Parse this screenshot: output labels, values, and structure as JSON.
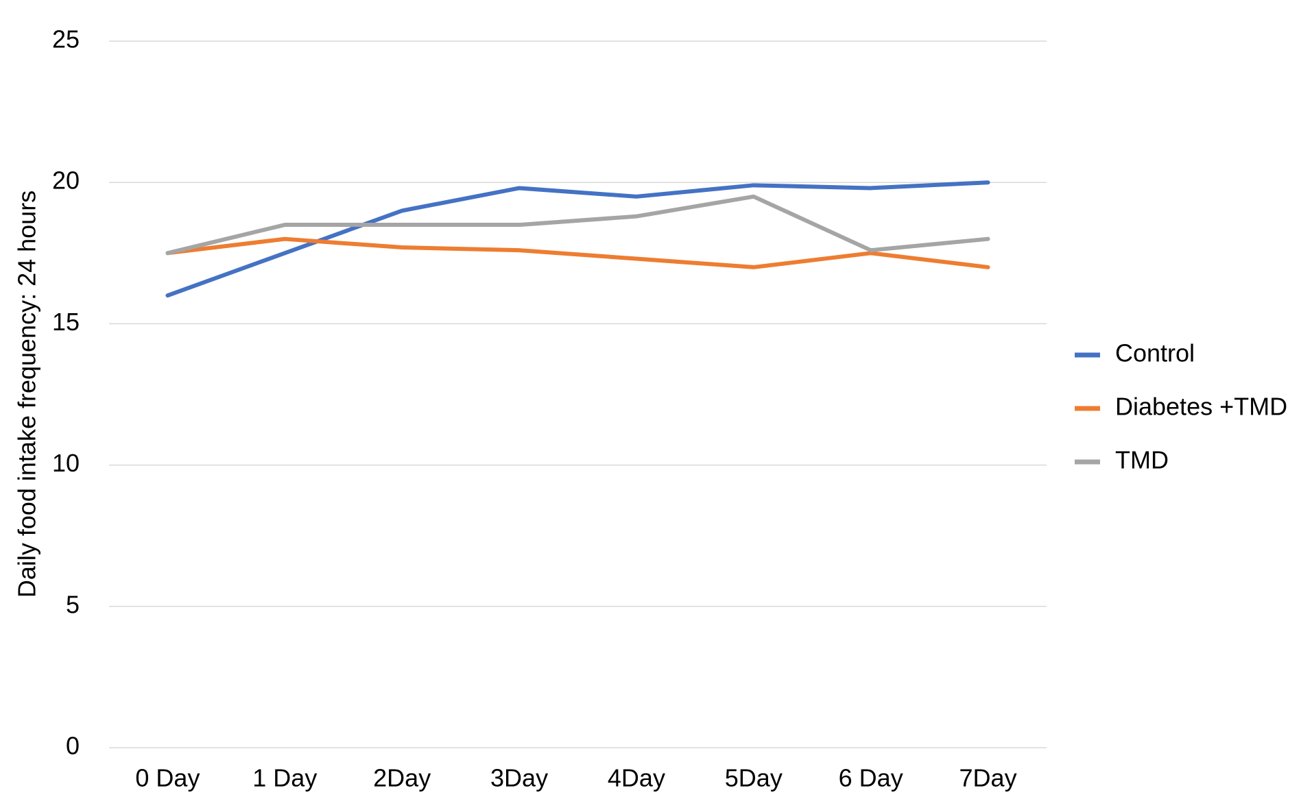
{
  "chart_data": {
    "type": "line",
    "y_label": "Daily food intake frequency: 24 hours",
    "categories": [
      "0 Day",
      "1 Day",
      "2Day",
      "3Day",
      "4Day",
      "5Day",
      "6 Day",
      "7Day"
    ],
    "series": [
      {
        "name": "Control",
        "color": "#4472c4",
        "values": [
          16,
          17.5,
          19,
          19.8,
          19.5,
          19.9,
          19.8,
          20
        ]
      },
      {
        "name": "Diabetes +TMD",
        "color": "#ed7d31",
        "values": [
          17.5,
          18,
          17.7,
          17.6,
          17.3,
          17,
          17.5,
          17
        ]
      },
      {
        "name": "TMD",
        "color": "#a5a5a5",
        "values": [
          17.5,
          18.5,
          18.5,
          18.5,
          18.8,
          19.5,
          17.6,
          18
        ]
      }
    ],
    "ylim": [
      0,
      25
    ],
    "yticks": [
      0,
      5,
      10,
      15,
      20,
      25
    ],
    "grid": true,
    "legend": "right"
  }
}
